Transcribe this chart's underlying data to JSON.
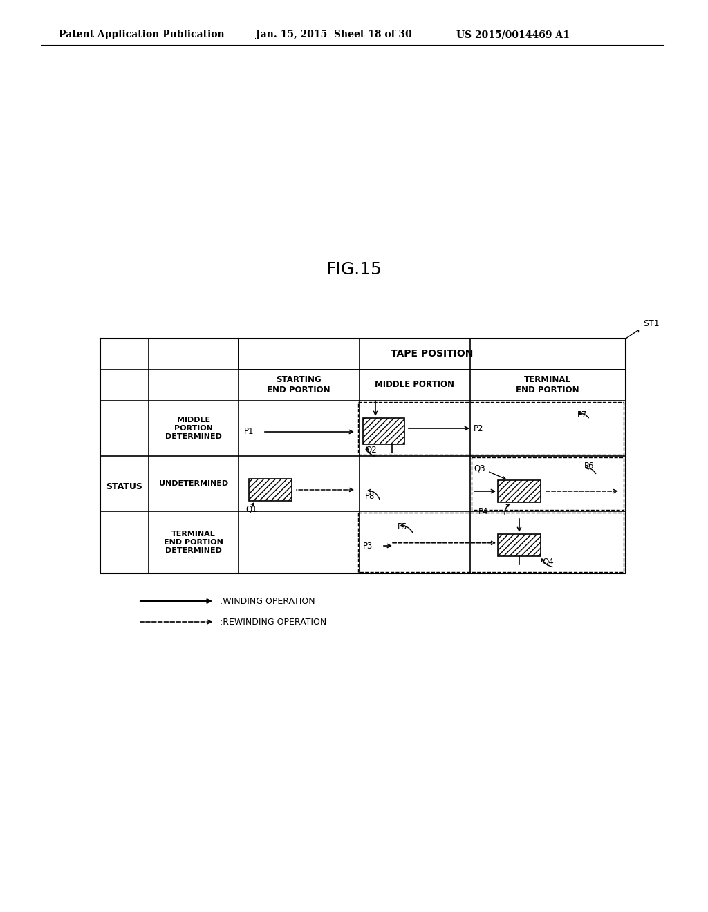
{
  "title": "FIG.15",
  "patent_line1": "Patent Application Publication",
  "patent_line2": "Jan. 15, 2015  Sheet 18 of 30",
  "patent_line3": "US 2015/0014469 A1",
  "st1_label": "ST1",
  "tape_position_label": "TAPE POSITION",
  "col_headers": [
    "STARTING\nEND PORTION",
    "MIDDLE PORTION",
    "TERMINAL\nEND PORTION"
  ],
  "row_headers": [
    "MIDDLE\nPORTION\nDETERMINED",
    "UNDETERMINED",
    "TERMINAL\nEND PORTION\nDETERMINED"
  ],
  "status_label": "STATUS",
  "legend_winding": ":WINDING OPERATION",
  "legend_rewinding": ":REWINDING OPERATION",
  "bg_color": "#ffffff"
}
